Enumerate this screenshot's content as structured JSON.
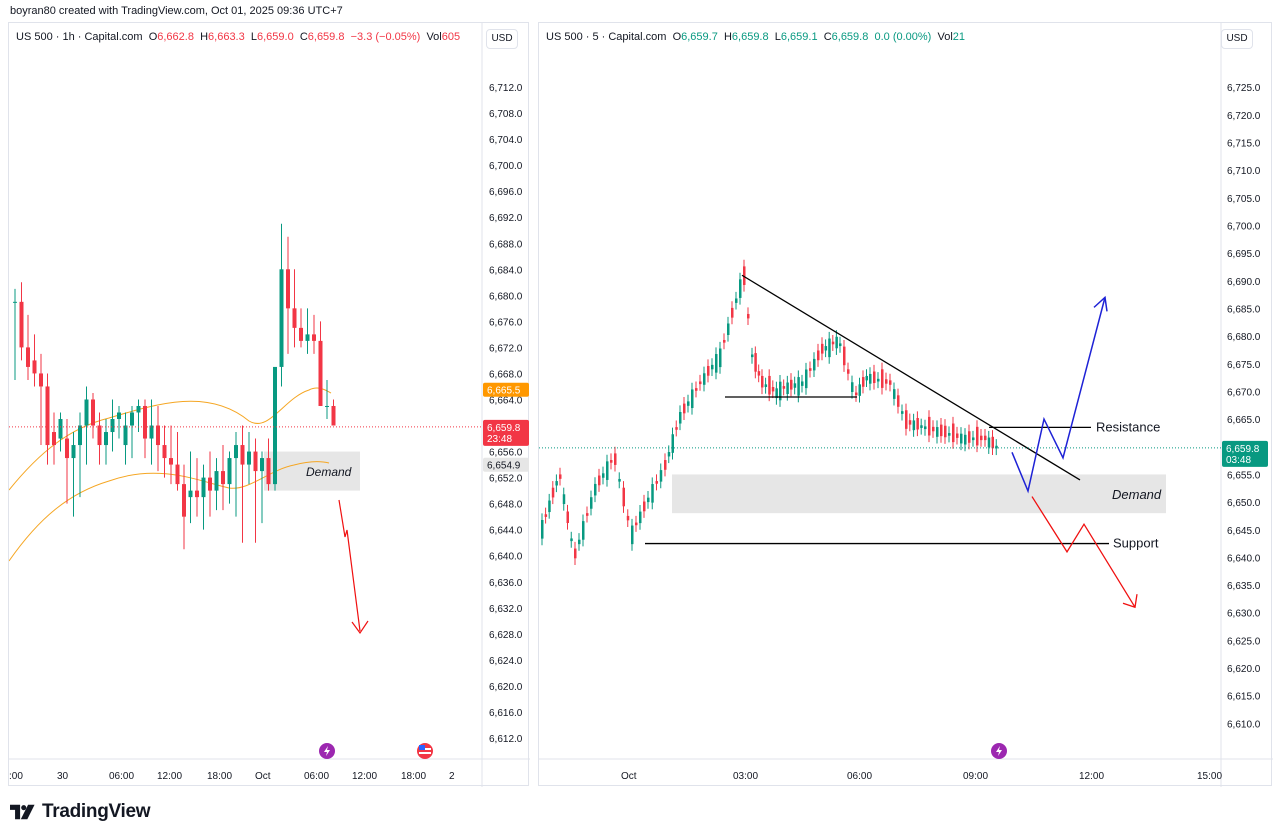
{
  "header": {
    "creator_line": "boyran80 created with TradingView.com, Oct 01, 2025 09:36 UTC+7"
  },
  "brand": {
    "name": "TradingView"
  },
  "icons": {
    "lightning": "lightning-bolt-icon",
    "flag": "us-flag-icon",
    "logo": "tradingview-logo-icon"
  },
  "colors": {
    "up": "#089981",
    "down": "#f23645",
    "ma": "#f5a623",
    "demand_zone": "#e6e6e6",
    "last_price_line": "#f23645",
    "arrow_up": "#1e22d6",
    "arrow_down": "#f01010",
    "trendline": "#000000",
    "orange_tag": "#ff9800"
  },
  "left": {
    "legend": {
      "symbol": "US 500 · 1h · Capital.com",
      "o_label": "O",
      "o": "6,662.8",
      "h_label": "H",
      "h": "6,663.3",
      "l_label": "L",
      "l": "6,659.0",
      "c_label": "C",
      "c": "6,659.8",
      "change": "−3.3 (−0.05%)",
      "vol_label": "Vol",
      "vol": "605"
    },
    "currency": "USD",
    "price_tags": {
      "orange": "6,665.5",
      "last": "6,659.8",
      "countdown": "23:48",
      "gray": "6,654.9"
    },
    "demand_label": "Demand"
  },
  "right": {
    "legend": {
      "symbol": "US 500 · 5 · Capital.com",
      "o_label": "O",
      "o": "6,659.7",
      "h_label": "H",
      "h": "6,659.8",
      "l_label": "L",
      "l": "6,659.1",
      "c_label": "C",
      "c": "6,659.8",
      "change": "0.0 (0.00%)",
      "vol_label": "Vol",
      "vol": "21"
    },
    "currency": "USD",
    "price_tags": {
      "last": "6,659.8",
      "countdown": "03:48"
    },
    "labels": {
      "resistance": "Resistance",
      "demand": "Demand",
      "support": "Support"
    }
  },
  "chart_data": [
    {
      "type": "candlestick",
      "title": "US 500 · 1h · Capital.com",
      "ylim": [
        6610.0,
        6714.0
      ],
      "y_ticks": [
        "6,712.0",
        "6,708.0",
        "6,704.0",
        "6,700.0",
        "6,696.0",
        "6,692.0",
        "6,688.0",
        "6,684.0",
        "6,680.0",
        "6,676.0",
        "6,672.0",
        "6,668.0",
        "6,664.0",
        "6,660.0",
        "6,656.0",
        "6,652.0",
        "6,648.0",
        "6,644.0",
        "6,640.0",
        "6,636.0",
        "6,632.0",
        "6,628.0",
        "6,624.0",
        "6,620.0",
        "6,616.0",
        "6,612.0"
      ],
      "x_ticks": [
        ":00",
        "30",
        "06:00",
        "12:00",
        "18:00",
        "Oct",
        "06:00",
        "12:00",
        "18:00",
        "2"
      ],
      "candles_ohlc": [
        [
          6679,
          6681,
          6667,
          6679
        ],
        [
          6679,
          6682,
          6670,
          6672
        ],
        [
          6672,
          6677,
          6667,
          6669
        ],
        [
          6670,
          6674,
          6666,
          6668
        ],
        [
          6668,
          6671,
          6657,
          6666
        ],
        [
          6666,
          6668,
          6654,
          6657
        ],
        [
          6659,
          6662,
          6654,
          6657
        ],
        [
          6658,
          6662,
          6656,
          6661
        ],
        [
          6658,
          6661,
          6648,
          6655
        ],
        [
          6655,
          6659,
          6646,
          6657
        ],
        [
          6657,
          6662,
          6649,
          6660
        ],
        [
          6660,
          6666,
          6654,
          6664
        ],
        [
          6664,
          6665,
          6658,
          6660
        ],
        [
          6660,
          6662,
          6654,
          6657
        ],
        [
          6657,
          6661,
          6654,
          6659
        ],
        [
          6659,
          6664,
          6656,
          6661
        ],
        [
          6661,
          6663,
          6658,
          6662
        ],
        [
          6657,
          6662,
          6654,
          6660
        ],
        [
          6660,
          6663,
          6655,
          6662
        ],
        [
          6662,
          6664,
          6659,
          6663
        ],
        [
          6663,
          6664,
          6655,
          6658
        ],
        [
          6658,
          6664,
          6654,
          6660
        ],
        [
          6660,
          6663,
          6653,
          6657
        ],
        [
          6657,
          6660,
          6652,
          6655
        ],
        [
          6655,
          6660,
          6651,
          6654
        ],
        [
          6654,
          6659,
          6650,
          6651
        ],
        [
          6651,
          6654,
          6641,
          6646
        ],
        [
          6649,
          6656,
          6645,
          6650
        ],
        [
          6650,
          6655,
          6646,
          6649
        ],
        [
          6649,
          6654,
          6644,
          6652
        ],
        [
          6652,
          6656,
          6646,
          6650
        ],
        [
          6650,
          6655,
          6647,
          6653
        ],
        [
          6653,
          6657,
          6647,
          6651
        ],
        [
          6651,
          6656,
          6648,
          6655
        ],
        [
          6655,
          6659,
          6646,
          6657
        ],
        [
          6657,
          6660,
          6642,
          6654
        ],
        [
          6654,
          6659,
          6651,
          6656
        ],
        [
          6656,
          6658,
          6642,
          6653
        ],
        [
          6653,
          6656,
          6645,
          6655
        ],
        [
          6655,
          6658,
          6650,
          6651
        ],
        [
          6651,
          6658,
          6650,
          6669
        ],
        [
          6669,
          6691,
          6666,
          6684
        ],
        [
          6684,
          6689,
          6671,
          6678
        ],
        [
          6678,
          6684,
          6672,
          6675
        ],
        [
          6675,
          6678,
          6672,
          6673
        ],
        [
          6673,
          6678,
          6671,
          6674
        ],
        [
          6674,
          6677,
          6671,
          6673
        ],
        [
          6673,
          6676,
          6663,
          6663
        ],
        [
          6663,
          6667,
          6661,
          6663
        ],
        [
          6663,
          6664,
          6660,
          6660
        ]
      ],
      "last_price": "6,659.8",
      "zones": [
        {
          "label": "Demand",
          "from": 6650,
          "to": 6656
        }
      ],
      "projection": "down"
    },
    {
      "type": "candlestick",
      "title": "US 500 · 5 · Capital.com",
      "ylim": [
        6607.0,
        6729.0
      ],
      "y_ticks": [
        "6,725.0",
        "6,720.0",
        "6,715.0",
        "6,710.0",
        "6,705.0",
        "6,700.0",
        "6,695.0",
        "6,690.0",
        "6,685.0",
        "6,680.0",
        "6,675.0",
        "6,670.0",
        "6,665.0",
        "6,660.0",
        "6,655.0",
        "6,650.0",
        "6,645.0",
        "6,640.0",
        "6,635.0",
        "6,630.0",
        "6,625.0",
        "6,620.0",
        "6,615.0",
        "6,610.0"
      ],
      "x_ticks": [
        "Oct",
        "03:00",
        "06:00",
        "09:00",
        "12:00",
        "15:00"
      ],
      "key_levels": {
        "resistance": 6663.5,
        "support": 6642.5,
        "swing_high": 6691,
        "range_low": 6669
      },
      "zones": [
        {
          "label": "Demand",
          "from": 6648,
          "to": 6655
        }
      ],
      "trendline": {
        "from": 6691,
        "to": 6654
      },
      "last_price": "6,659.8",
      "projection_up": [
        6659,
        6652,
        6665,
        6658,
        6687
      ],
      "projection_down": [
        6651,
        6641,
        6646,
        6631
      ]
    }
  ]
}
